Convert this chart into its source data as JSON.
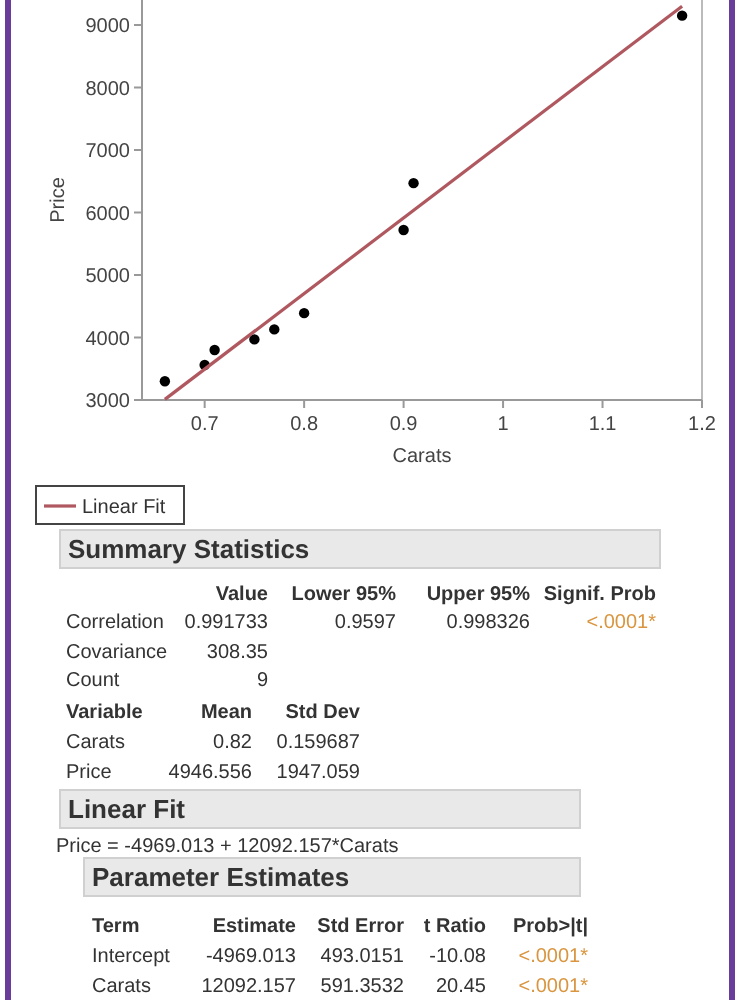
{
  "chart_data": {
    "type": "scatter",
    "xlabel": "Carats",
    "ylabel": "Price",
    "xlim": [
      0.637,
      1.2
    ],
    "ylim": [
      3000,
      9400
    ],
    "xticks": [
      0.7,
      0.8,
      0.9,
      1,
      1.1,
      1.2
    ],
    "yticks": [
      3000,
      4000,
      5000,
      6000,
      7000,
      8000,
      9000
    ],
    "grid": false,
    "legend": "bottom left",
    "series": [
      {
        "marker": "circle",
        "color": "#000000",
        "x": [
          0.66,
          0.7,
          0.71,
          0.75,
          0.77,
          0.8,
          0.9,
          0.91,
          1.18
        ],
        "values": [
          3300,
          3560,
          3800,
          3970,
          4130,
          4390,
          5720,
          6470,
          9150
        ]
      },
      {
        "type": "line",
        "name": "Linear Fit",
        "marker": "none",
        "color": "#b0585f",
        "x": [
          0.66,
          1.18
        ],
        "values": [
          3010,
          9300
        ]
      }
    ],
    "annotations": [
      "Summary Statistics",
      "Value",
      "Lower 95%",
      "Upper 95%",
      "Signif. Prob",
      "Correlation",
      "0.991733",
      "0.9597",
      "0.998326",
      "<.0001*",
      "Covariance",
      "308.35",
      "Count",
      "9",
      "Variable",
      "Mean",
      "Std Dev",
      "Carats",
      "0.82",
      "0.159687",
      "Price",
      "4946.556",
      "1947.059",
      "Linear Fit",
      "Price = -4969.013 + 12092.157*Carats",
      "Parameter Estimates",
      "Term",
      "Estimate",
      "Std Error",
      "t Ratio",
      "Prob>|t|",
      "Intercept",
      "-4969.013",
      "493.0151",
      "-10.08",
      "<.0001*",
      "Carats",
      "12092.157",
      "591.3532",
      "20.45",
      "<.0001*"
    ]
  }
}
